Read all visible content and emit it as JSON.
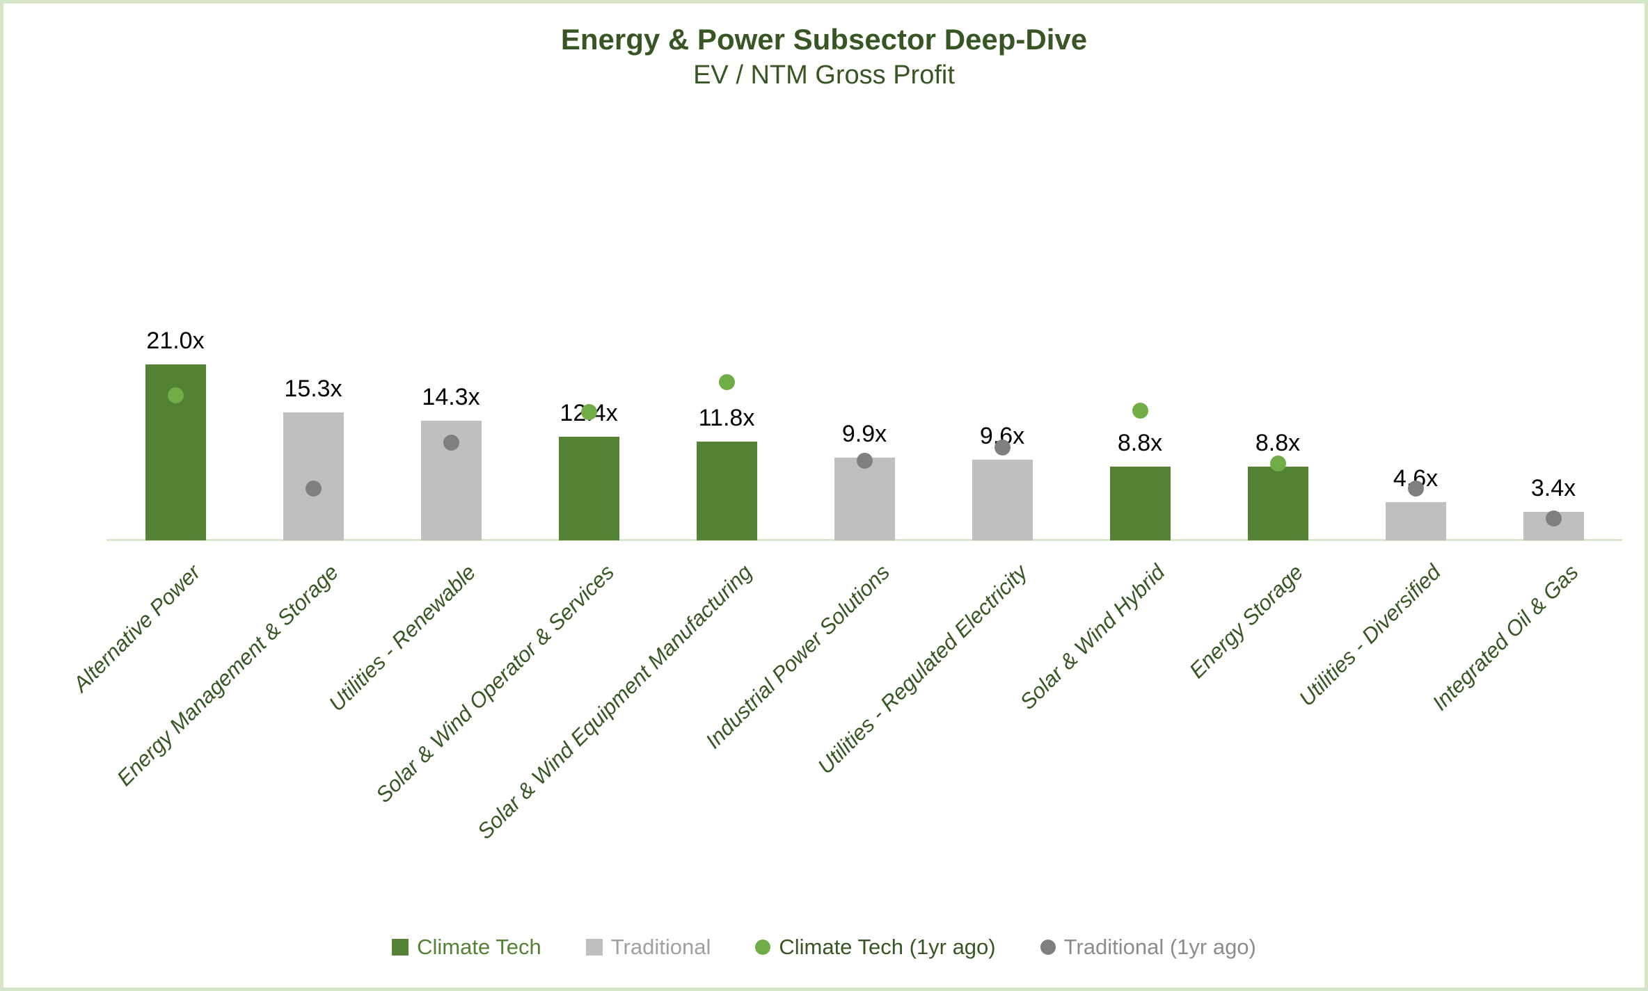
{
  "title": "Energy & Power Subsector Deep-Dive",
  "subtitle": "EV / NTM Gross Profit",
  "colors": {
    "background": "#ffffff",
    "page_border": "#d6e5c8",
    "title_text": "#375623",
    "category_text": "#375623",
    "value_text": "#000000",
    "axis_line": "#d9e8cc"
  },
  "legend": {
    "items": [
      {
        "label": "Climate Tech",
        "swatch": "square",
        "color": "#548235",
        "text_color": "#548235"
      },
      {
        "label": "Traditional",
        "swatch": "square",
        "color": "#bfbfbf",
        "text_color": "#a0a0a0"
      },
      {
        "label": "Climate Tech (1yr ago)",
        "swatch": "circle",
        "color": "#70ad47",
        "text_color": "#375623"
      },
      {
        "label": "Traditional (1yr ago)",
        "swatch": "circle",
        "color": "#7f7f7f",
        "text_color": "#8c8c8c"
      }
    ]
  },
  "chart_data": {
    "type": "bar",
    "title": "Energy & Power Subsector Deep-Dive",
    "subtitle": "EV / NTM Gross Profit",
    "unit": "EV / NTM Gross Profit multiple (x)",
    "categories": [
      "Alternative Power",
      "Energy Management & Storage",
      "Utilities - Renewable",
      "Solar & Wind Operator & Services",
      "Solar & Wind Equipment Manufacturing",
      "Industrial Power Solutions",
      "Utilities - Regulated Electricity",
      "Solar & Wind Hybrid",
      "Energy Storage",
      "Utilities - Diversified",
      "Integrated Oil & Gas"
    ],
    "value_labels": [
      "21.0x",
      "15.3x",
      "14.3x",
      "12.4x",
      "11.8x",
      "9.9x",
      "9.6x",
      "8.8x",
      "8.8x",
      "4.6x",
      "3.4x"
    ],
    "series": [
      {
        "name": "Climate Tech",
        "type": "bar",
        "color": "#548235",
        "values": [
          21.0,
          null,
          null,
          12.4,
          11.8,
          null,
          null,
          8.8,
          8.8,
          null,
          null
        ]
      },
      {
        "name": "Traditional",
        "type": "bar",
        "color": "#bfbfbf",
        "values": [
          null,
          15.3,
          14.3,
          null,
          null,
          9.9,
          9.6,
          null,
          null,
          4.6,
          3.4
        ]
      },
      {
        "name": "Climate Tech (1yr ago)",
        "type": "scatter",
        "color": "#70ad47",
        "values": [
          17.3,
          null,
          null,
          15.3,
          18.9,
          null,
          null,
          15.5,
          9.2,
          null,
          null
        ]
      },
      {
        "name": "Traditional (1yr ago)",
        "type": "scatter",
        "color": "#7f7f7f",
        "values": [
          null,
          6.2,
          11.7,
          null,
          null,
          9.5,
          11.1,
          null,
          null,
          6.2,
          2.6
        ]
      }
    ],
    "ylim": [
      0,
      22
    ],
    "grid": false,
    "y_axis_visible": false,
    "legend_position": "bottom"
  }
}
